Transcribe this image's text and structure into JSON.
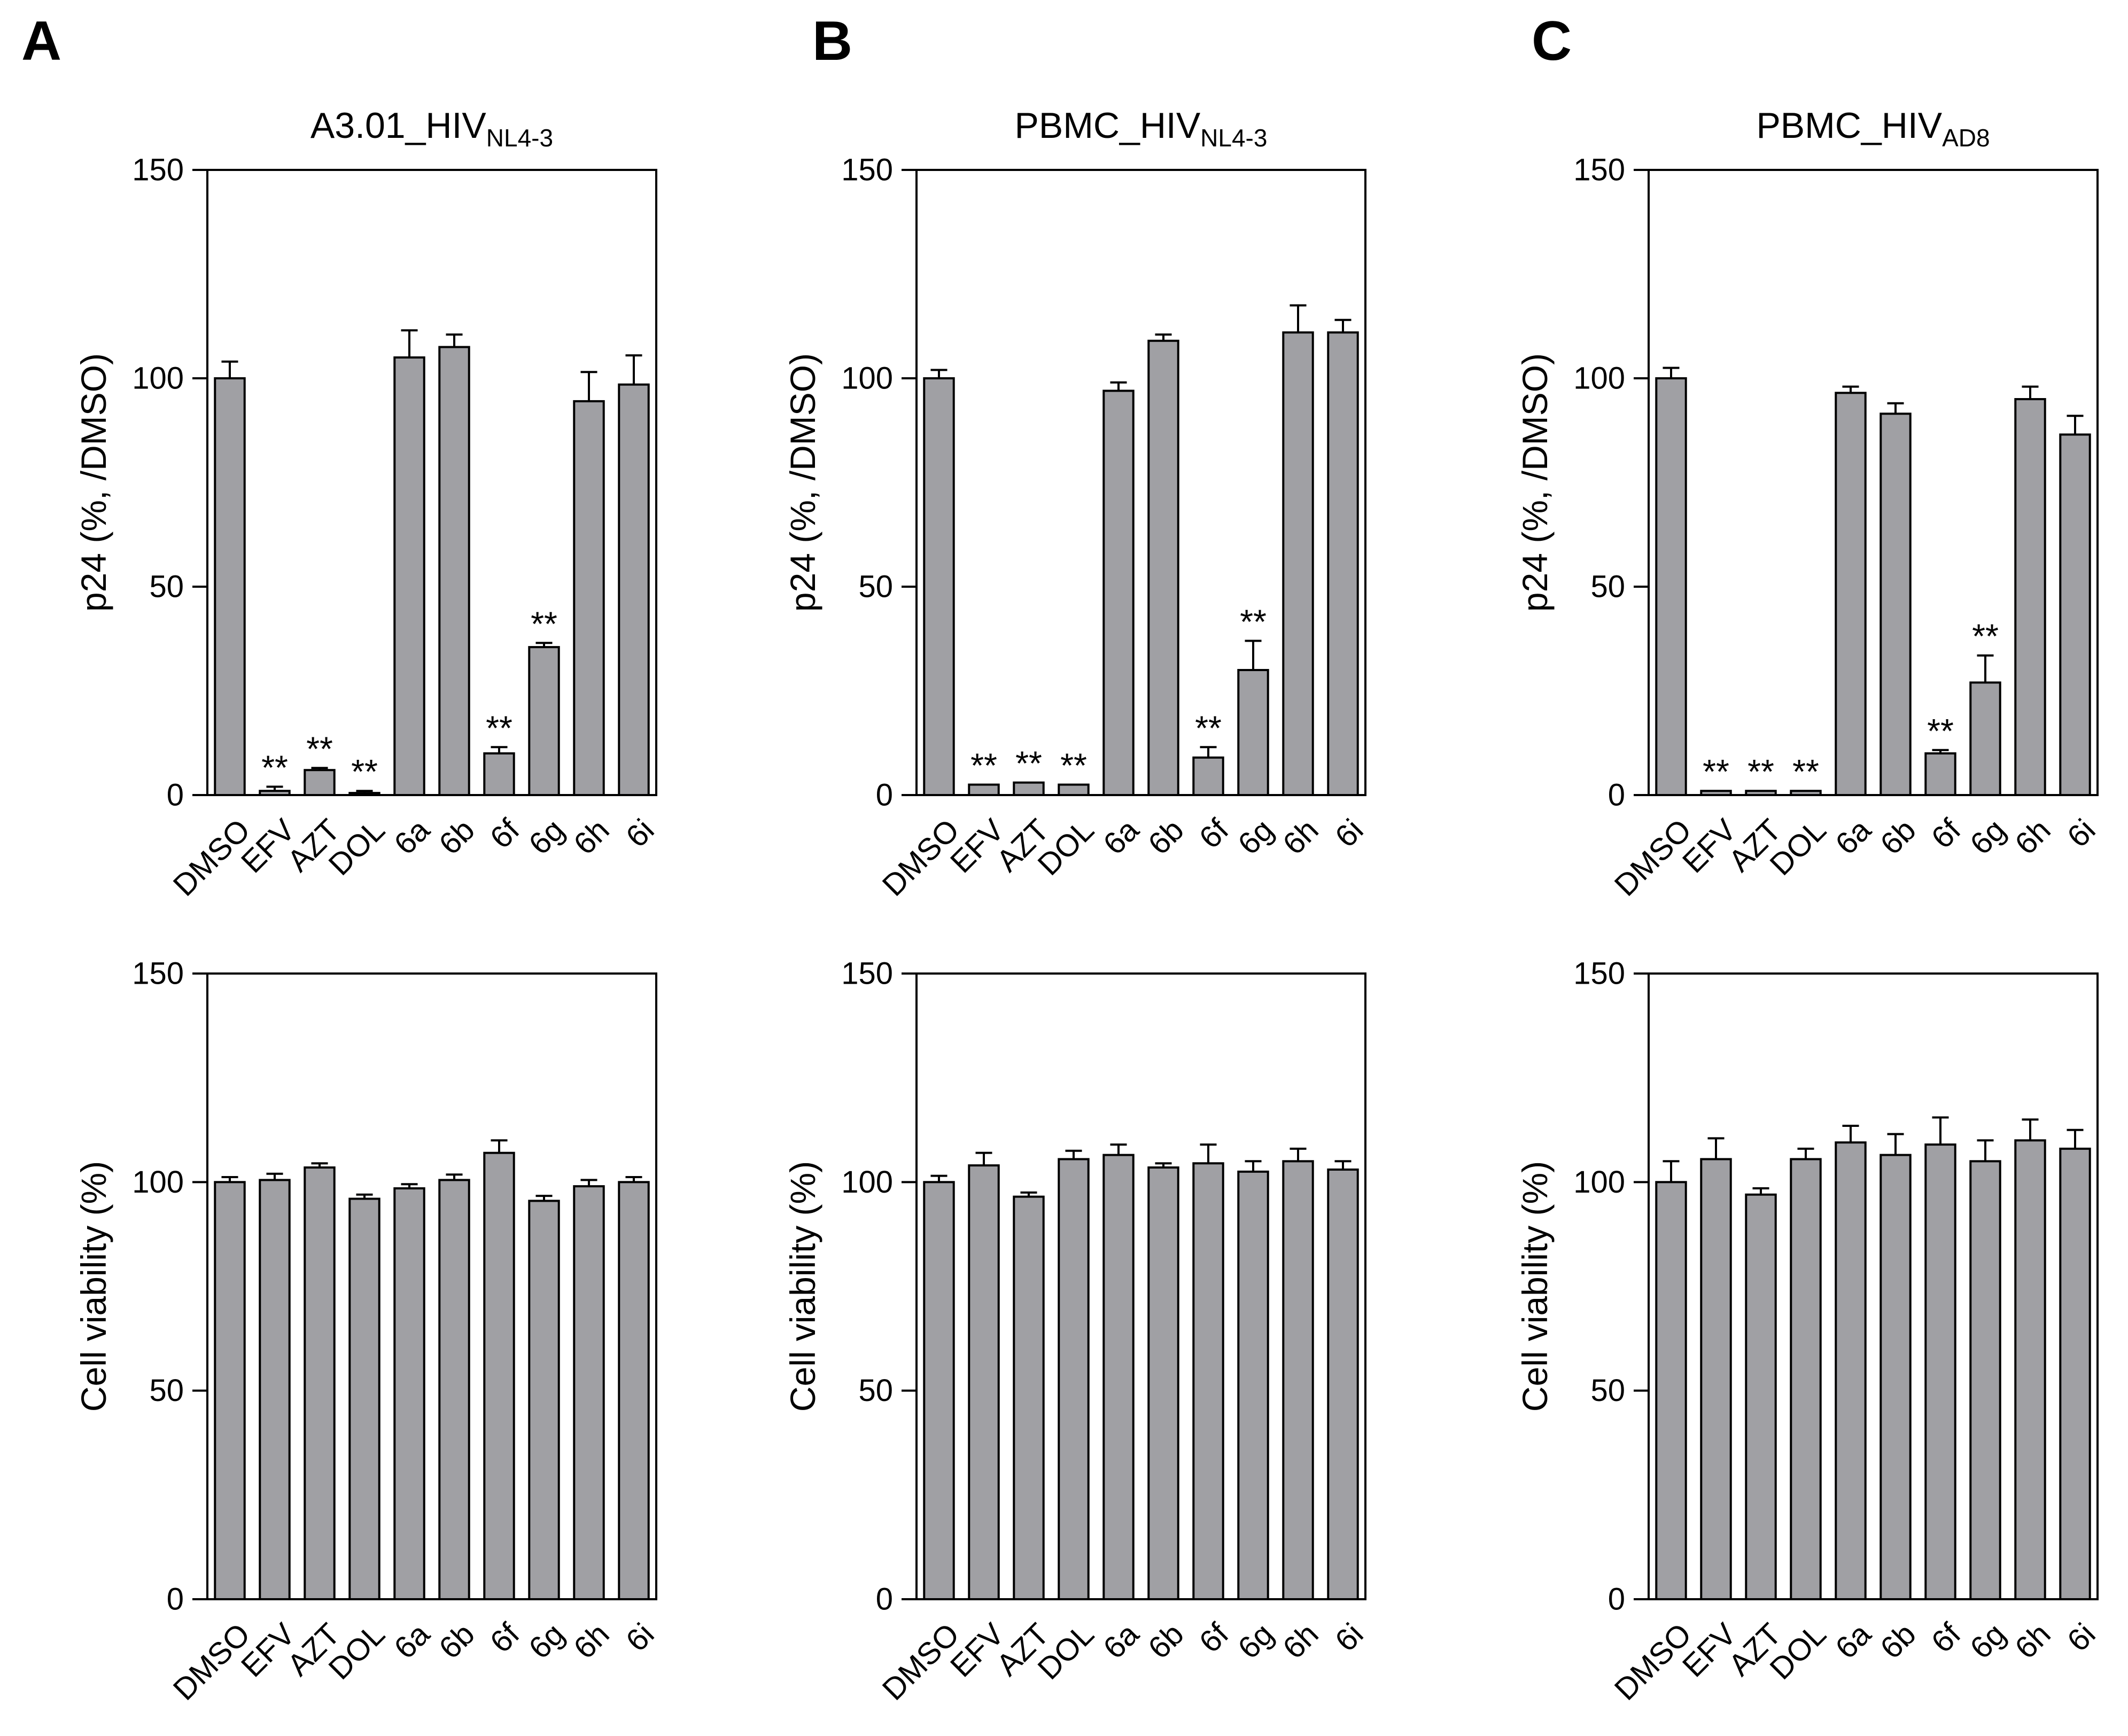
{
  "figure": {
    "panels": [
      {
        "letter": "A"
      },
      {
        "letter": "B"
      },
      {
        "letter": "C"
      }
    ]
  },
  "chart_data": [
    {
      "panel": "A",
      "row": "top",
      "type": "bar",
      "title": {
        "main": "A3.01_HIV",
        "sub": "NL4-3"
      },
      "ylabel": "p24 (%, /DMSO)",
      "xlabel": "",
      "ylim": [
        0,
        150
      ],
      "yticks": [
        0,
        50,
        100,
        150
      ],
      "categories": [
        "DMSO",
        "EFV",
        "AZT",
        "DOL",
        "6a",
        "6b",
        "6f",
        "6g",
        "6h",
        "6i"
      ],
      "values": [
        100,
        1,
        6,
        0.5,
        105,
        107.5,
        10,
        35.5,
        94.5,
        98.5
      ],
      "errors": [
        4,
        1,
        0.5,
        0.5,
        6.5,
        3,
        1.5,
        1,
        7,
        7
      ],
      "annotations": [
        "",
        "**",
        "**",
        "**",
        "",
        "",
        "**",
        "**",
        "",
        ""
      ],
      "bar_color": "#a0a0a4",
      "grid": false
    },
    {
      "panel": "B",
      "row": "top",
      "type": "bar",
      "title": {
        "main": "PBMC_HIV",
        "sub": "NL4-3"
      },
      "ylabel": "p24 (%, /DMSO)",
      "xlabel": "",
      "ylim": [
        0,
        150
      ],
      "yticks": [
        0,
        50,
        100,
        150
      ],
      "categories": [
        "DMSO",
        "EFV",
        "AZT",
        "DOL",
        "6a",
        "6b",
        "6f",
        "6g",
        "6h",
        "6i"
      ],
      "values": [
        100,
        2.5,
        3,
        2.5,
        97,
        109,
        9,
        30,
        111,
        111
      ],
      "errors": [
        2,
        0,
        0,
        0,
        2,
        1.5,
        2.5,
        7,
        6.5,
        3
      ],
      "annotations": [
        "",
        "**",
        "**",
        "**",
        "",
        "",
        "**",
        "**",
        "",
        ""
      ],
      "bar_color": "#a0a0a4",
      "grid": false
    },
    {
      "panel": "C",
      "row": "top",
      "type": "bar",
      "title": {
        "main": "PBMC_HIV",
        "sub": "AD8"
      },
      "ylabel": "p24 (%, /DMSO)",
      "xlabel": "",
      "ylim": [
        0,
        150
      ],
      "yticks": [
        0,
        50,
        100,
        150
      ],
      "categories": [
        "DMSO",
        "EFV",
        "AZT",
        "DOL",
        "6a",
        "6b",
        "6f",
        "6g",
        "6h",
        "6i"
      ],
      "values": [
        100,
        1,
        1,
        1,
        96.5,
        91.5,
        10,
        27,
        95,
        86.5
      ],
      "errors": [
        2.5,
        0,
        0,
        0,
        1.5,
        2.5,
        0.8,
        6.5,
        3,
        4.5
      ],
      "annotations": [
        "",
        "**",
        "**",
        "**",
        "",
        "",
        "**",
        "**",
        "",
        ""
      ],
      "bar_color": "#a0a0a4",
      "grid": false
    },
    {
      "panel": "A",
      "row": "bottom",
      "type": "bar",
      "title": null,
      "ylabel": "Cell viability (%)",
      "xlabel": "",
      "ylim": [
        0,
        150
      ],
      "yticks": [
        0,
        50,
        100,
        150
      ],
      "categories": [
        "DMSO",
        "EFV",
        "AZT",
        "DOL",
        "6a",
        "6b",
        "6f",
        "6g",
        "6h",
        "6i"
      ],
      "values": [
        100,
        100.5,
        103.5,
        96,
        98.5,
        100.5,
        107,
        95.5,
        99,
        100
      ],
      "errors": [
        1.2,
        1.5,
        1,
        1,
        1,
        1.3,
        3,
        1.2,
        1.5,
        1.2
      ],
      "annotations": [
        "",
        "",
        "",
        "",
        "",
        "",
        "",
        "",
        "",
        ""
      ],
      "bar_color": "#a0a0a4",
      "grid": false
    },
    {
      "panel": "B",
      "row": "bottom",
      "type": "bar",
      "title": null,
      "ylabel": "Cell viability (%)",
      "xlabel": "",
      "ylim": [
        0,
        150
      ],
      "yticks": [
        0,
        50,
        100,
        150
      ],
      "categories": [
        "DMSO",
        "EFV",
        "AZT",
        "DOL",
        "6a",
        "6b",
        "6f",
        "6g",
        "6h",
        "6i"
      ],
      "values": [
        100,
        104,
        96.5,
        105.5,
        106.5,
        103.5,
        104.5,
        102.5,
        105,
        103
      ],
      "errors": [
        1.5,
        3,
        1,
        2,
        2.5,
        1,
        4.5,
        2.5,
        3,
        2
      ],
      "annotations": [
        "",
        "",
        "",
        "",
        "",
        "",
        "",
        "",
        "",
        ""
      ],
      "bar_color": "#a0a0a4",
      "grid": false
    },
    {
      "panel": "C",
      "row": "bottom",
      "type": "bar",
      "title": null,
      "ylabel": "Cell viability (%)",
      "xlabel": "",
      "ylim": [
        0,
        150
      ],
      "yticks": [
        0,
        50,
        100,
        150
      ],
      "categories": [
        "DMSO",
        "EFV",
        "AZT",
        "DOL",
        "6a",
        "6b",
        "6f",
        "6g",
        "6h",
        "6i"
      ],
      "values": [
        100,
        105.5,
        97,
        105.5,
        109.5,
        106.5,
        109,
        105,
        110,
        108
      ],
      "errors": [
        5,
        5,
        1.5,
        2.5,
        4,
        5,
        6.5,
        5,
        5,
        4.5
      ],
      "annotations": [
        "",
        "",
        "",
        "",
        "",
        "",
        "",
        "",
        "",
        ""
      ],
      "bar_color": "#a0a0a4",
      "grid": false
    }
  ]
}
